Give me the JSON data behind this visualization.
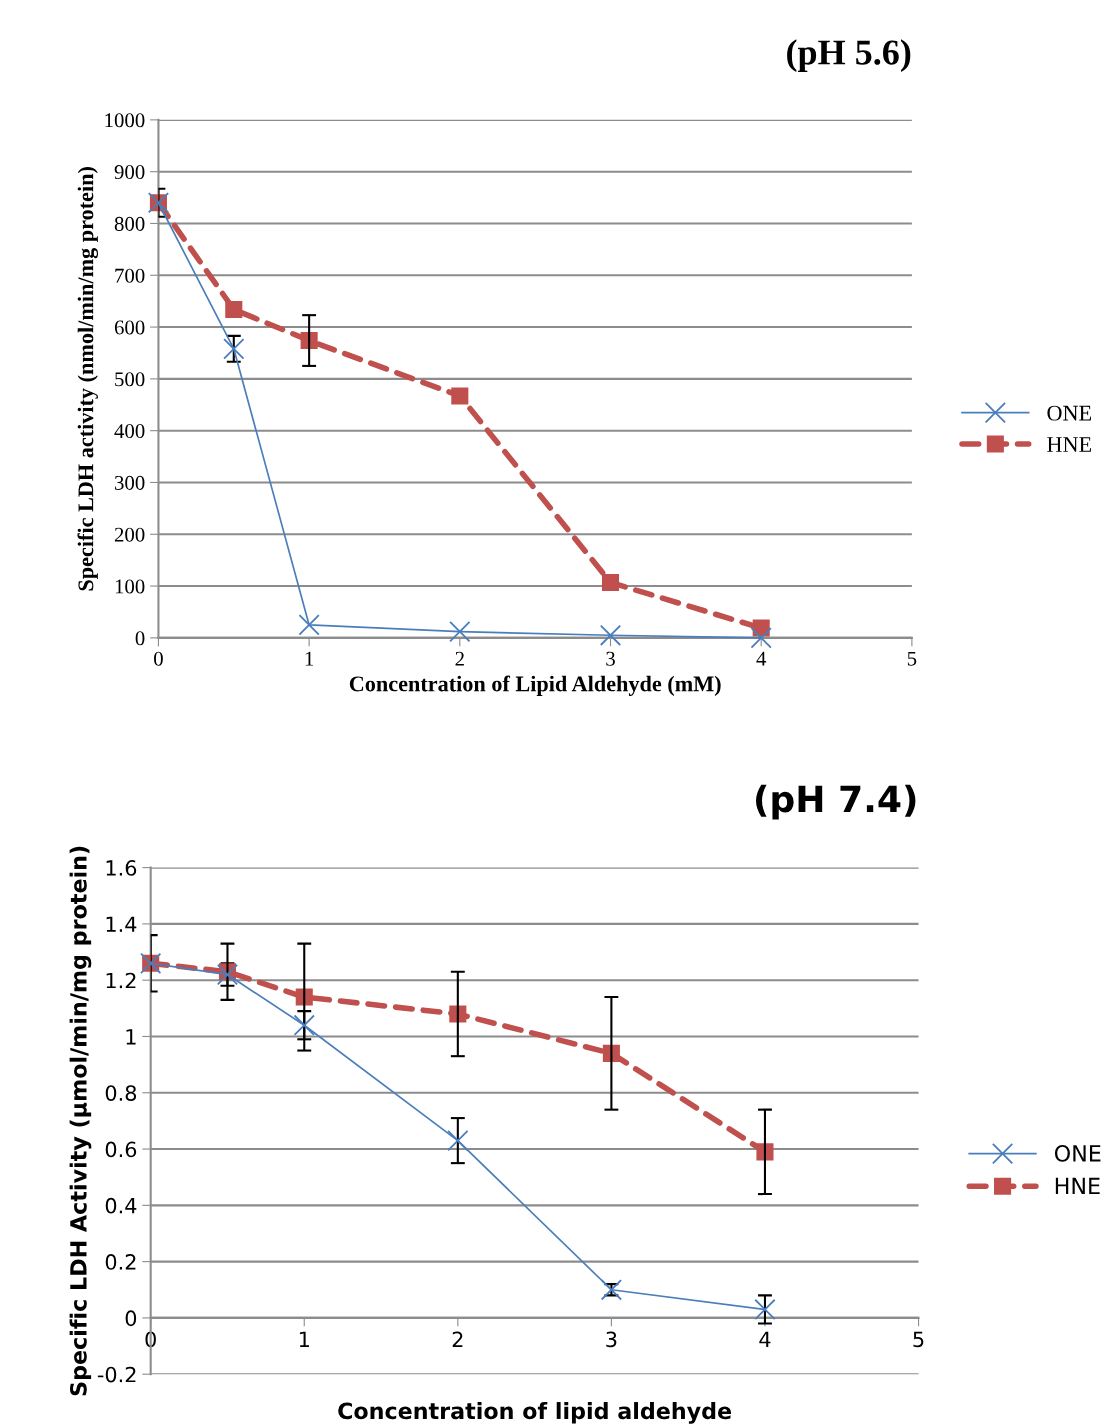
{
  "chart_data": [
    {
      "type": "line",
      "title": "(pH 5.6)",
      "xlabel": "Concentration of Lipid Aldehyde (mM)",
      "ylabel": "Specific LDH activity (nmol/min/mg protein)",
      "xlim": [
        0,
        5
      ],
      "xticks": [
        0,
        1,
        2,
        3,
        4,
        5
      ],
      "ylim": [
        0,
        1000
      ],
      "yticks": [
        0,
        100,
        200,
        300,
        400,
        500,
        600,
        700,
        800,
        900,
        1000
      ],
      "grid": "y",
      "legend": "right",
      "series": [
        {
          "name": "ONE",
          "color": "#4a7ebb",
          "marker": "cross",
          "line_style": "solid",
          "x": [
            0,
            0.5,
            1,
            2,
            3,
            4
          ],
          "values": [
            840,
            558,
            25,
            12,
            5,
            0
          ],
          "errors": [
            null,
            25,
            null,
            null,
            null,
            null
          ]
        },
        {
          "name": "HNE",
          "color": "#c0504d",
          "marker": "square",
          "line_style": "dashed",
          "x": [
            0,
            0.5,
            1,
            2,
            3,
            4
          ],
          "values": [
            840,
            634,
            574,
            467,
            107,
            19
          ],
          "errors": [
            27,
            null,
            49,
            null,
            null,
            null
          ]
        }
      ]
    },
    {
      "type": "line",
      "title": "(pH 7.4)",
      "xlabel": "Concentration of lipid aldehyde",
      "ylabel": "Specific LDH Activity (µmol/min/mg protein)",
      "xlim": [
        0,
        5
      ],
      "xticks": [
        0,
        1,
        2,
        3,
        4,
        5
      ],
      "ylim": [
        -0.2,
        1.6
      ],
      "yticks": [
        -0.2,
        0,
        0.2,
        0.4,
        0.6,
        0.8,
        1,
        1.2,
        1.4,
        1.6
      ],
      "grid": "y",
      "legend": "right",
      "series": [
        {
          "name": "ONE",
          "color": "#4a7ebb",
          "marker": "cross",
          "line_style": "solid",
          "x": [
            0,
            0.5,
            1,
            2,
            3,
            4
          ],
          "values": [
            1.26,
            1.22,
            1.04,
            0.63,
            0.1,
            0.03
          ],
          "errors": [
            null,
            0.04,
            0.05,
            0.08,
            0.02,
            0.05
          ]
        },
        {
          "name": "HNE",
          "color": "#c0504d",
          "marker": "square",
          "line_style": "dashed",
          "x": [
            0,
            0.5,
            1,
            2,
            3,
            4
          ],
          "values": [
            1.26,
            1.23,
            1.14,
            1.08,
            0.94,
            0.59
          ],
          "errors": [
            0.1,
            0.1,
            0.19,
            0.15,
            0.2,
            0.15
          ]
        }
      ]
    }
  ]
}
